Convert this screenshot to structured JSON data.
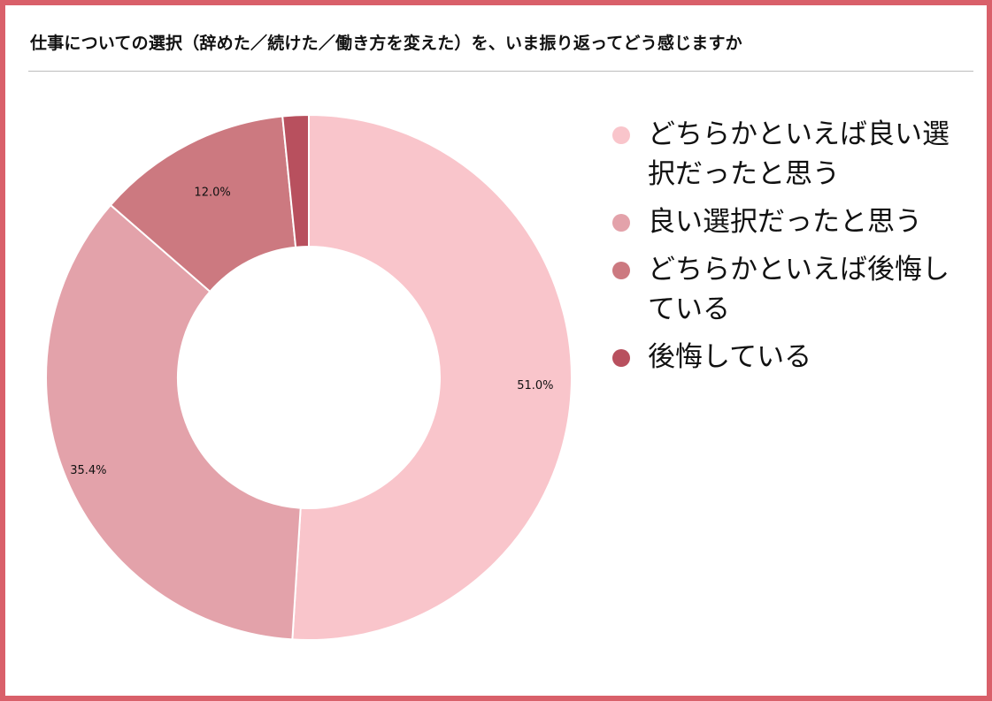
{
  "title": "仕事についての選択（辞めた／続けた／働き方を変えた）を、いま振り返ってどう感じますか",
  "colors": {
    "frame": "#d9606a",
    "slices": [
      "#f9c5cb",
      "#e3a2aa",
      "#cc7980",
      "#b8505e"
    ]
  },
  "chart_data": {
    "type": "pie",
    "donut": true,
    "title": "仕事についての選択（辞めた／続けた／働き方を変えた）を、いま振り返ってどう感じますか",
    "categories": [
      "どちらかといえば良い選択だったと思う",
      "良い選択だったと思う",
      "どちらかといえば後悔している",
      "後悔している"
    ],
    "values": [
      51.0,
      35.4,
      12.0,
      1.6
    ],
    "data_labels": [
      "51.0%",
      "35.4%",
      "12.0%",
      ""
    ],
    "legend_position": "right"
  }
}
